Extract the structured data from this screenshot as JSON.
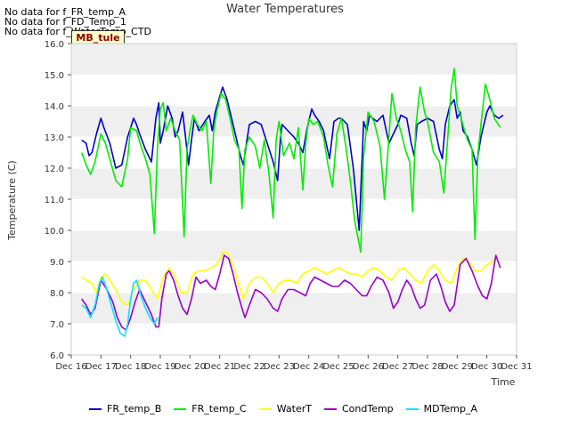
{
  "no_data_messages": [
    "No data for f_FR_temp_A",
    "No data for f_FD_Temp_1",
    "No data for f_WaterTemp_CTD"
  ],
  "site_badge": "MB_tule",
  "chart_data": {
    "type": "line",
    "title": "Water Temperatures",
    "xlabel": "Time",
    "ylabel": "Temperature (C)",
    "ylim": [
      6.0,
      16.0
    ],
    "xlim": [
      16,
      31
    ],
    "yticks": [
      6.0,
      7.0,
      8.0,
      9.0,
      10.0,
      11.0,
      12.0,
      13.0,
      14.0,
      15.0,
      16.0
    ],
    "xticks": [
      16,
      17,
      18,
      19,
      20,
      21,
      22,
      23,
      24,
      25,
      26,
      27,
      28,
      29,
      30,
      31
    ],
    "xtick_labels": [
      "Dec 16",
      "Dec 17",
      "Dec 18",
      "Dec 19",
      "Dec 20",
      "Dec 21",
      "Dec 22",
      "Dec 23",
      "Dec 24",
      "Dec 25",
      "Dec 26",
      "Dec 27",
      "Dec 28",
      "Dec 29",
      "Dec 30",
      "Dec 31"
    ],
    "legend_position": "bottom",
    "background_bands": true,
    "series": [
      {
        "name": "FR_temp_B",
        "color": "#0000cc",
        "x": [
          16.35,
          16.5,
          16.6,
          16.7,
          16.85,
          17.0,
          17.1,
          17.3,
          17.5,
          17.7,
          17.9,
          18.1,
          18.2,
          18.3,
          18.5,
          18.7,
          18.85,
          18.95,
          19.0,
          19.1,
          19.25,
          19.4,
          19.5,
          19.6,
          19.75,
          19.85,
          19.95,
          20.05,
          20.15,
          20.3,
          20.5,
          20.65,
          20.75,
          20.85,
          21.0,
          21.1,
          21.25,
          21.4,
          21.55,
          21.7,
          21.8,
          21.9,
          22.0,
          22.2,
          22.4,
          22.6,
          22.8,
          22.95,
          23.05,
          23.1,
          23.3,
          23.5,
          23.65,
          23.8,
          23.95,
          24.1,
          24.2,
          24.35,
          24.5,
          24.7,
          24.85,
          25.0,
          25.1,
          25.3,
          25.5,
          25.7,
          25.85,
          25.95,
          26.05,
          26.15,
          26.3,
          26.5,
          26.7,
          26.85,
          27.0,
          27.1,
          27.3,
          27.45,
          27.55,
          27.65,
          27.8,
          28.0,
          28.2,
          28.4,
          28.5,
          28.6,
          28.75,
          28.9,
          29.0,
          29.1,
          29.2,
          29.35,
          29.5,
          29.65,
          29.8,
          29.9,
          30.0,
          30.1,
          30.25,
          30.4,
          30.55
        ],
        "values": [
          12.9,
          12.8,
          12.4,
          12.5,
          13.1,
          13.6,
          13.3,
          12.8,
          12.0,
          12.1,
          13.0,
          13.6,
          13.4,
          13.1,
          12.6,
          12.2,
          13.6,
          14.1,
          12.8,
          13.2,
          14.0,
          13.6,
          13.0,
          13.2,
          13.8,
          13.0,
          12.1,
          12.9,
          13.6,
          13.2,
          13.5,
          13.7,
          13.2,
          13.8,
          14.3,
          14.6,
          14.2,
          13.6,
          13.0,
          12.4,
          12.1,
          12.8,
          13.4,
          13.5,
          13.4,
          12.8,
          12.2,
          11.6,
          13.0,
          13.4,
          13.2,
          13.0,
          12.8,
          12.5,
          13.3,
          13.9,
          13.7,
          13.5,
          13.2,
          12.3,
          13.5,
          13.6,
          13.6,
          13.4,
          12.0,
          10.0,
          13.5,
          13.2,
          13.7,
          13.6,
          13.5,
          13.7,
          12.8,
          13.1,
          13.4,
          13.7,
          13.6,
          12.8,
          12.4,
          13.4,
          13.5,
          13.6,
          13.5,
          12.6,
          12.3,
          13.4,
          14.0,
          14.2,
          13.6,
          13.8,
          13.2,
          13.0,
          12.6,
          12.1,
          13.0,
          13.4,
          13.8,
          14.0,
          13.7,
          13.6,
          13.7
        ]
      },
      {
        "name": "FR_temp_C",
        "color": "#00ee00",
        "x": [
          16.35,
          16.5,
          16.65,
          16.8,
          17.0,
          17.15,
          17.3,
          17.5,
          17.7,
          17.9,
          18.0,
          18.2,
          18.35,
          18.5,
          18.65,
          18.8,
          18.9,
          19.0,
          19.1,
          19.2,
          19.35,
          19.5,
          19.65,
          19.8,
          19.9,
          20.0,
          20.1,
          20.25,
          20.4,
          20.55,
          20.7,
          20.8,
          20.9,
          21.05,
          21.2,
          21.35,
          21.5,
          21.65,
          21.75,
          21.85,
          22.0,
          22.2,
          22.35,
          22.5,
          22.65,
          22.8,
          22.9,
          23.0,
          23.15,
          23.35,
          23.5,
          23.65,
          23.8,
          23.9,
          24.0,
          24.15,
          24.3,
          24.5,
          24.65,
          24.8,
          24.95,
          25.1,
          25.25,
          25.4,
          25.55,
          25.75,
          25.85,
          26.0,
          26.2,
          26.4,
          26.55,
          26.7,
          26.8,
          26.95,
          27.1,
          27.25,
          27.4,
          27.5,
          27.6,
          27.75,
          27.9,
          28.0,
          28.2,
          28.4,
          28.55,
          28.7,
          28.8,
          28.9,
          29.0,
          29.1,
          29.25,
          29.35,
          29.5,
          29.6,
          29.7,
          29.8,
          29.95,
          30.1,
          30.25,
          30.45
        ],
        "values": [
          12.5,
          12.1,
          11.8,
          12.2,
          13.1,
          12.8,
          12.3,
          11.6,
          11.4,
          12.3,
          13.3,
          13.2,
          12.7,
          12.3,
          11.8,
          9.9,
          12.6,
          13.9,
          14.1,
          13.2,
          13.6,
          13.2,
          12.9,
          9.8,
          12.6,
          13.2,
          13.7,
          13.4,
          13.2,
          13.5,
          11.5,
          13.2,
          13.8,
          14.4,
          14.2,
          13.6,
          12.9,
          12.6,
          10.7,
          12.6,
          13.0,
          12.7,
          12.0,
          12.9,
          11.9,
          10.4,
          12.9,
          13.5,
          12.4,
          12.8,
          12.3,
          13.3,
          11.3,
          12.8,
          13.6,
          13.4,
          13.5,
          13.0,
          12.1,
          11.4,
          13.1,
          13.6,
          12.7,
          11.6,
          10.3,
          9.3,
          12.4,
          13.8,
          13.5,
          12.7,
          11.0,
          13.0,
          14.4,
          13.6,
          13.2,
          12.6,
          12.2,
          10.6,
          13.3,
          14.6,
          13.8,
          13.5,
          12.5,
          12.2,
          11.2,
          13.2,
          14.6,
          15.2,
          14.0,
          13.7,
          13.2,
          12.9,
          12.6,
          9.7,
          12.5,
          13.4,
          14.7,
          14.2,
          13.6,
          13.3
        ]
      },
      {
        "name": "WaterT",
        "color": "#ffff00",
        "x": [
          16.35,
          16.5,
          16.7,
          16.85,
          17.0,
          17.15,
          17.3,
          17.5,
          17.7,
          17.9,
          18.1,
          18.3,
          18.5,
          18.7,
          18.9,
          19.1,
          19.3,
          19.5,
          19.7,
          19.9,
          20.1,
          20.3,
          20.5,
          20.7,
          20.9,
          21.1,
          21.25,
          21.4,
          21.6,
          21.8,
          22.0,
          22.2,
          22.4,
          22.6,
          22.8,
          23.0,
          23.2,
          23.4,
          23.6,
          23.8,
          24.0,
          24.2,
          24.4,
          24.6,
          24.8,
          25.0,
          25.2,
          25.4,
          25.6,
          25.8,
          26.0,
          26.2,
          26.4,
          26.6,
          26.8,
          27.0,
          27.2,
          27.4,
          27.6,
          27.8,
          28.0,
          28.2,
          28.4,
          28.6,
          28.8,
          29.0,
          29.2,
          29.4,
          29.6,
          29.8,
          30.0,
          30.2,
          30.4
        ],
        "values": [
          8.5,
          8.4,
          8.3,
          8.0,
          8.5,
          8.6,
          8.4,
          8.1,
          7.7,
          7.6,
          8.1,
          8.4,
          8.4,
          8.1,
          7.8,
          8.5,
          8.8,
          8.5,
          8.0,
          8.0,
          8.6,
          8.7,
          8.7,
          8.8,
          8.9,
          9.3,
          9.3,
          9.0,
          8.4,
          7.8,
          8.3,
          8.5,
          8.5,
          8.3,
          8.0,
          8.3,
          8.4,
          8.4,
          8.3,
          8.6,
          8.7,
          8.8,
          8.7,
          8.6,
          8.7,
          8.8,
          8.7,
          8.6,
          8.6,
          8.5,
          8.7,
          8.8,
          8.7,
          8.5,
          8.4,
          8.7,
          8.8,
          8.6,
          8.4,
          8.3,
          8.7,
          8.9,
          8.7,
          8.4,
          8.3,
          8.8,
          9.1,
          9.0,
          8.7,
          8.7,
          8.9,
          9.0,
          9.2
        ]
      },
      {
        "name": "CondTemp",
        "color": "#9900cc",
        "x": [
          16.35,
          16.5,
          16.65,
          16.8,
          17.0,
          17.2,
          17.4,
          17.55,
          17.7,
          17.85,
          18.0,
          18.15,
          18.3,
          18.5,
          18.7,
          18.85,
          18.95,
          19.05,
          19.2,
          19.3,
          19.45,
          19.6,
          19.75,
          19.9,
          20.05,
          20.2,
          20.35,
          20.55,
          20.7,
          20.85,
          21.0,
          21.15,
          21.3,
          21.45,
          21.6,
          21.75,
          21.85,
          22.0,
          22.2,
          22.4,
          22.6,
          22.8,
          22.95,
          23.1,
          23.3,
          23.5,
          23.7,
          23.9,
          24.05,
          24.2,
          24.4,
          24.6,
          24.8,
          25.0,
          25.2,
          25.4,
          25.6,
          25.8,
          25.95,
          26.1,
          26.3,
          26.5,
          26.7,
          26.85,
          27.0,
          27.15,
          27.3,
          27.45,
          27.6,
          27.75,
          27.9,
          28.1,
          28.3,
          28.45,
          28.6,
          28.75,
          28.9,
          29.1,
          29.3,
          29.5,
          29.7,
          29.85,
          30.0,
          30.15,
          30.3,
          30.45
        ],
        "values": [
          7.8,
          7.6,
          7.3,
          7.5,
          8.4,
          8.1,
          7.7,
          7.2,
          6.9,
          6.8,
          7.2,
          7.7,
          8.1,
          7.7,
          7.3,
          6.9,
          6.9,
          7.8,
          8.6,
          8.7,
          8.4,
          7.9,
          7.5,
          7.3,
          7.8,
          8.5,
          8.3,
          8.4,
          8.2,
          8.1,
          8.6,
          9.2,
          9.1,
          8.6,
          8.0,
          7.5,
          7.2,
          7.6,
          8.1,
          8.0,
          7.8,
          7.5,
          7.4,
          7.8,
          8.1,
          8.1,
          8.0,
          7.9,
          8.3,
          8.5,
          8.4,
          8.3,
          8.2,
          8.2,
          8.4,
          8.3,
          8.1,
          7.9,
          7.9,
          8.2,
          8.5,
          8.4,
          8.0,
          7.5,
          7.7,
          8.1,
          8.4,
          8.2,
          7.8,
          7.5,
          7.6,
          8.4,
          8.6,
          8.2,
          7.7,
          7.4,
          7.6,
          8.9,
          9.1,
          8.7,
          8.2,
          7.9,
          7.8,
          8.3,
          9.2,
          8.8
        ]
      },
      {
        "name": "MDTemp_A",
        "color": "#00e5ff",
        "x": [
          16.35,
          16.5,
          16.65,
          16.8,
          16.95,
          17.05,
          17.2,
          17.35,
          17.5,
          17.65,
          17.8,
          17.9,
          18.0,
          18.1,
          18.2,
          18.35,
          18.5,
          18.65,
          18.8,
          18.9
        ],
        "values": [
          7.6,
          7.5,
          7.2,
          7.6,
          8.3,
          8.5,
          8.1,
          7.6,
          7.1,
          6.7,
          6.6,
          7.0,
          7.8,
          8.3,
          8.4,
          7.9,
          7.5,
          7.2,
          7.0,
          7.2
        ]
      }
    ]
  }
}
